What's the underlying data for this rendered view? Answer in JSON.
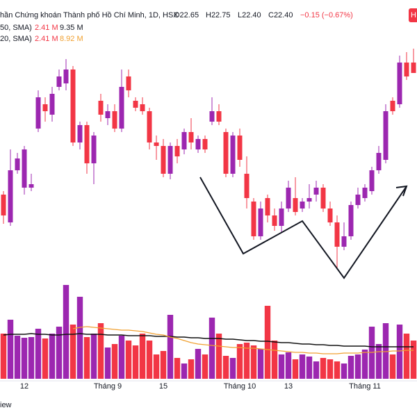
{
  "chart_data": {
    "type": "candlestick",
    "header": {
      "title": "hần Chứng khoán Thành phố Hồ Chí Minh, 1D, HSX",
      "open": "O22.65",
      "high": "H22.75",
      "low": "L22.40",
      "close": "C22.40",
      "change": "−0.15 (−0.67%)"
    },
    "indicators": [
      {
        "name": "50, SMA)",
        "value": "2.41 M",
        "ma": "9.35 M"
      },
      {
        "name": "20, SMA)",
        "value": "2.41 M",
        "ma": "8.92 M"
      }
    ],
    "corner": "H",
    "footer": "iew",
    "up_color": "#9c27b0",
    "down_color": "#f23645",
    "categories": [
      null,
      null,
      null,
      "12",
      null,
      null,
      null,
      null,
      null,
      null,
      null,
      null,
      null,
      null,
      null,
      "Tháng 9",
      null,
      null,
      null,
      null,
      null,
      null,
      null,
      "15",
      null,
      null,
      null,
      null,
      null,
      null,
      null,
      null,
      null,
      null,
      "Tháng 10",
      null,
      null,
      null,
      null,
      null,
      null,
      "13",
      null,
      null,
      null,
      null,
      null,
      null,
      null,
      null,
      null,
      null,
      "Tháng 11",
      null,
      null,
      null,
      null,
      null,
      null,
      null
    ],
    "open": [
      20.65,
      20.25,
      21.0,
      20.75,
      20.75,
      21.6,
      21.95,
      21.8,
      22.2,
      22.25,
      22.45,
      21.4,
      21.65,
      21.1,
      22.0,
      21.75,
      21.85,
      21.6,
      22.35,
      22.0,
      21.95,
      21.85,
      21.4,
      21.35,
      20.95,
      21.35,
      21.3,
      21.55,
      21.3,
      21.45,
      21.7,
      21.85,
      21.55,
      20.95,
      21.5,
      20.95,
      20.55,
      20.05,
      20.6,
      20.35,
      20.2,
      20.45,
      20.6,
      20.45,
      20.55,
      20.65,
      20.75,
      20.45,
      20.25,
      19.9,
      20.05,
      20.5,
      20.6,
      20.7,
      21.0,
      21.15,
      22.0,
      21.95,
      22.55,
      22.55
    ],
    "high": [
      20.7,
      21.3,
      21.25,
      21.35,
      20.95,
      22.15,
      22.05,
      22.2,
      22.45,
      22.6,
      22.5,
      21.7,
      21.7,
      21.55,
      22.1,
      21.95,
      21.95,
      22.45,
      22.45,
      22.05,
      22.05,
      21.9,
      21.5,
      21.45,
      21.4,
      21.45,
      21.6,
      21.75,
      21.5,
      21.5,
      22.05,
      21.95,
      21.6,
      21.55,
      21.6,
      21.2,
      20.6,
      20.55,
      20.65,
      20.45,
      20.55,
      20.85,
      20.9,
      20.6,
      20.8,
      20.85,
      20.8,
      20.55,
      20.35,
      20.25,
      20.55,
      20.75,
      20.8,
      21.05,
      21.35,
      21.95,
      22.05,
      22.65,
      22.7,
      22.75
    ],
    "low": [
      20.23,
      20.2,
      20.95,
      20.65,
      20.7,
      21.55,
      21.7,
      21.7,
      22.15,
      22.15,
      21.35,
      21.3,
      20.95,
      20.8,
      21.7,
      21.65,
      21.55,
      21.55,
      22.05,
      21.85,
      21.8,
      21.3,
      21.15,
      20.9,
      20.87,
      21.1,
      21.23,
      21.3,
      21.25,
      21.25,
      21.65,
      21.65,
      20.9,
      20.9,
      21.05,
      20.45,
      20.0,
      20.0,
      20.25,
      20.13,
      20.1,
      20.4,
      20.35,
      20.4,
      20.45,
      20.55,
      20.4,
      20.2,
      19.6,
      19.85,
      20.0,
      20.45,
      20.55,
      20.65,
      20.95,
      21.1,
      21.8,
      21.9,
      22.3,
      22.4
    ],
    "close": [
      20.35,
      21.0,
      21.17,
      21.3,
      20.8,
      22.05,
      21.85,
      22.1,
      22.35,
      22.45,
      21.4,
      21.65,
      21.1,
      21.5,
      21.8,
      21.85,
      21.6,
      22.2,
      22.15,
      21.9,
      21.85,
      21.4,
      21.35,
      20.95,
      21.35,
      21.2,
      21.55,
      21.4,
      21.45,
      21.3,
      21.85,
      21.7,
      20.95,
      21.5,
      21.15,
      20.6,
      20.05,
      20.45,
      20.35,
      20.2,
      20.45,
      20.75,
      20.4,
      20.55,
      20.6,
      20.75,
      20.45,
      20.25,
      19.9,
      20.05,
      20.5,
      20.65,
      20.75,
      21.0,
      21.25,
      21.85,
      21.85,
      22.55,
      22.35,
      22.4
    ],
    "ylim": [
      19.25,
      23.45
    ],
    "volume": [
      6.5,
      8.5,
      6.2,
      5.9,
      6.0,
      7.2,
      5.8,
      6.5,
      7.5,
      13.5,
      7.8,
      11.8,
      6.0,
      6.5,
      8.0,
      4.5,
      5.0,
      6.2,
      5.5,
      4.8,
      6.5,
      5.5,
      3.5,
      4.0,
      9.2,
      3.0,
      2.2,
      2.8,
      4.3,
      3.5,
      8.8,
      6.5,
      3.3,
      3.0,
      5.0,
      5.2,
      4.8,
      4.3,
      10.5,
      5.5,
      3.5,
      3.8,
      2.8,
      3.5,
      3.2,
      2.5,
      3.0,
      2.8,
      2.5,
      2.2,
      3.3,
      3.5,
      4.2,
      7.5,
      5.0,
      8.0,
      3.5,
      7.8,
      6.5,
      5.5
    ],
    "vlim": [
      0,
      14
    ],
    "ma_series": [
      {
        "color": "#111111",
        "values": [
          6.3,
          6.4,
          6.4,
          6.4,
          6.5,
          6.4,
          6.4,
          6.3,
          6.3,
          6.4,
          6.4,
          6.5,
          6.4,
          6.4,
          6.4,
          6.3,
          6.3,
          6.3,
          6.2,
          6.2,
          6.2,
          6.2,
          6.1,
          6.1,
          6.1,
          6.0,
          6.0,
          5.9,
          5.9,
          5.8,
          5.8,
          5.8,
          5.7,
          5.7,
          5.6,
          5.5,
          5.5,
          5.4,
          5.4,
          5.3,
          5.2,
          5.2,
          5.1,
          5.0,
          5.0,
          4.9,
          4.9,
          4.8,
          4.8,
          4.7,
          4.7,
          4.7,
          4.7,
          4.6,
          4.6,
          4.6,
          4.6,
          4.6,
          4.6,
          4.6
        ]
      },
      {
        "color": "#f0a030",
        "values": [
          null,
          null,
          null,
          null,
          null,
          null,
          null,
          null,
          null,
          null,
          7.2,
          7.4,
          7.5,
          7.4,
          7.3,
          7.2,
          7.1,
          7.0,
          7.0,
          6.9,
          6.8,
          6.6,
          6.4,
          6.3,
          6.0,
          5.8,
          5.5,
          5.2,
          5.0,
          4.9,
          4.8,
          4.7,
          4.6,
          4.5,
          4.5,
          4.4,
          4.4,
          4.3,
          4.2,
          4.1,
          4.0,
          3.9,
          3.8,
          3.8,
          3.7,
          3.7,
          3.6,
          3.6,
          3.6,
          3.7,
          3.7,
          3.7,
          3.8,
          3.8,
          3.9,
          3.9,
          4.0,
          4.0,
          4.1,
          4.1
        ]
      }
    ]
  }
}
